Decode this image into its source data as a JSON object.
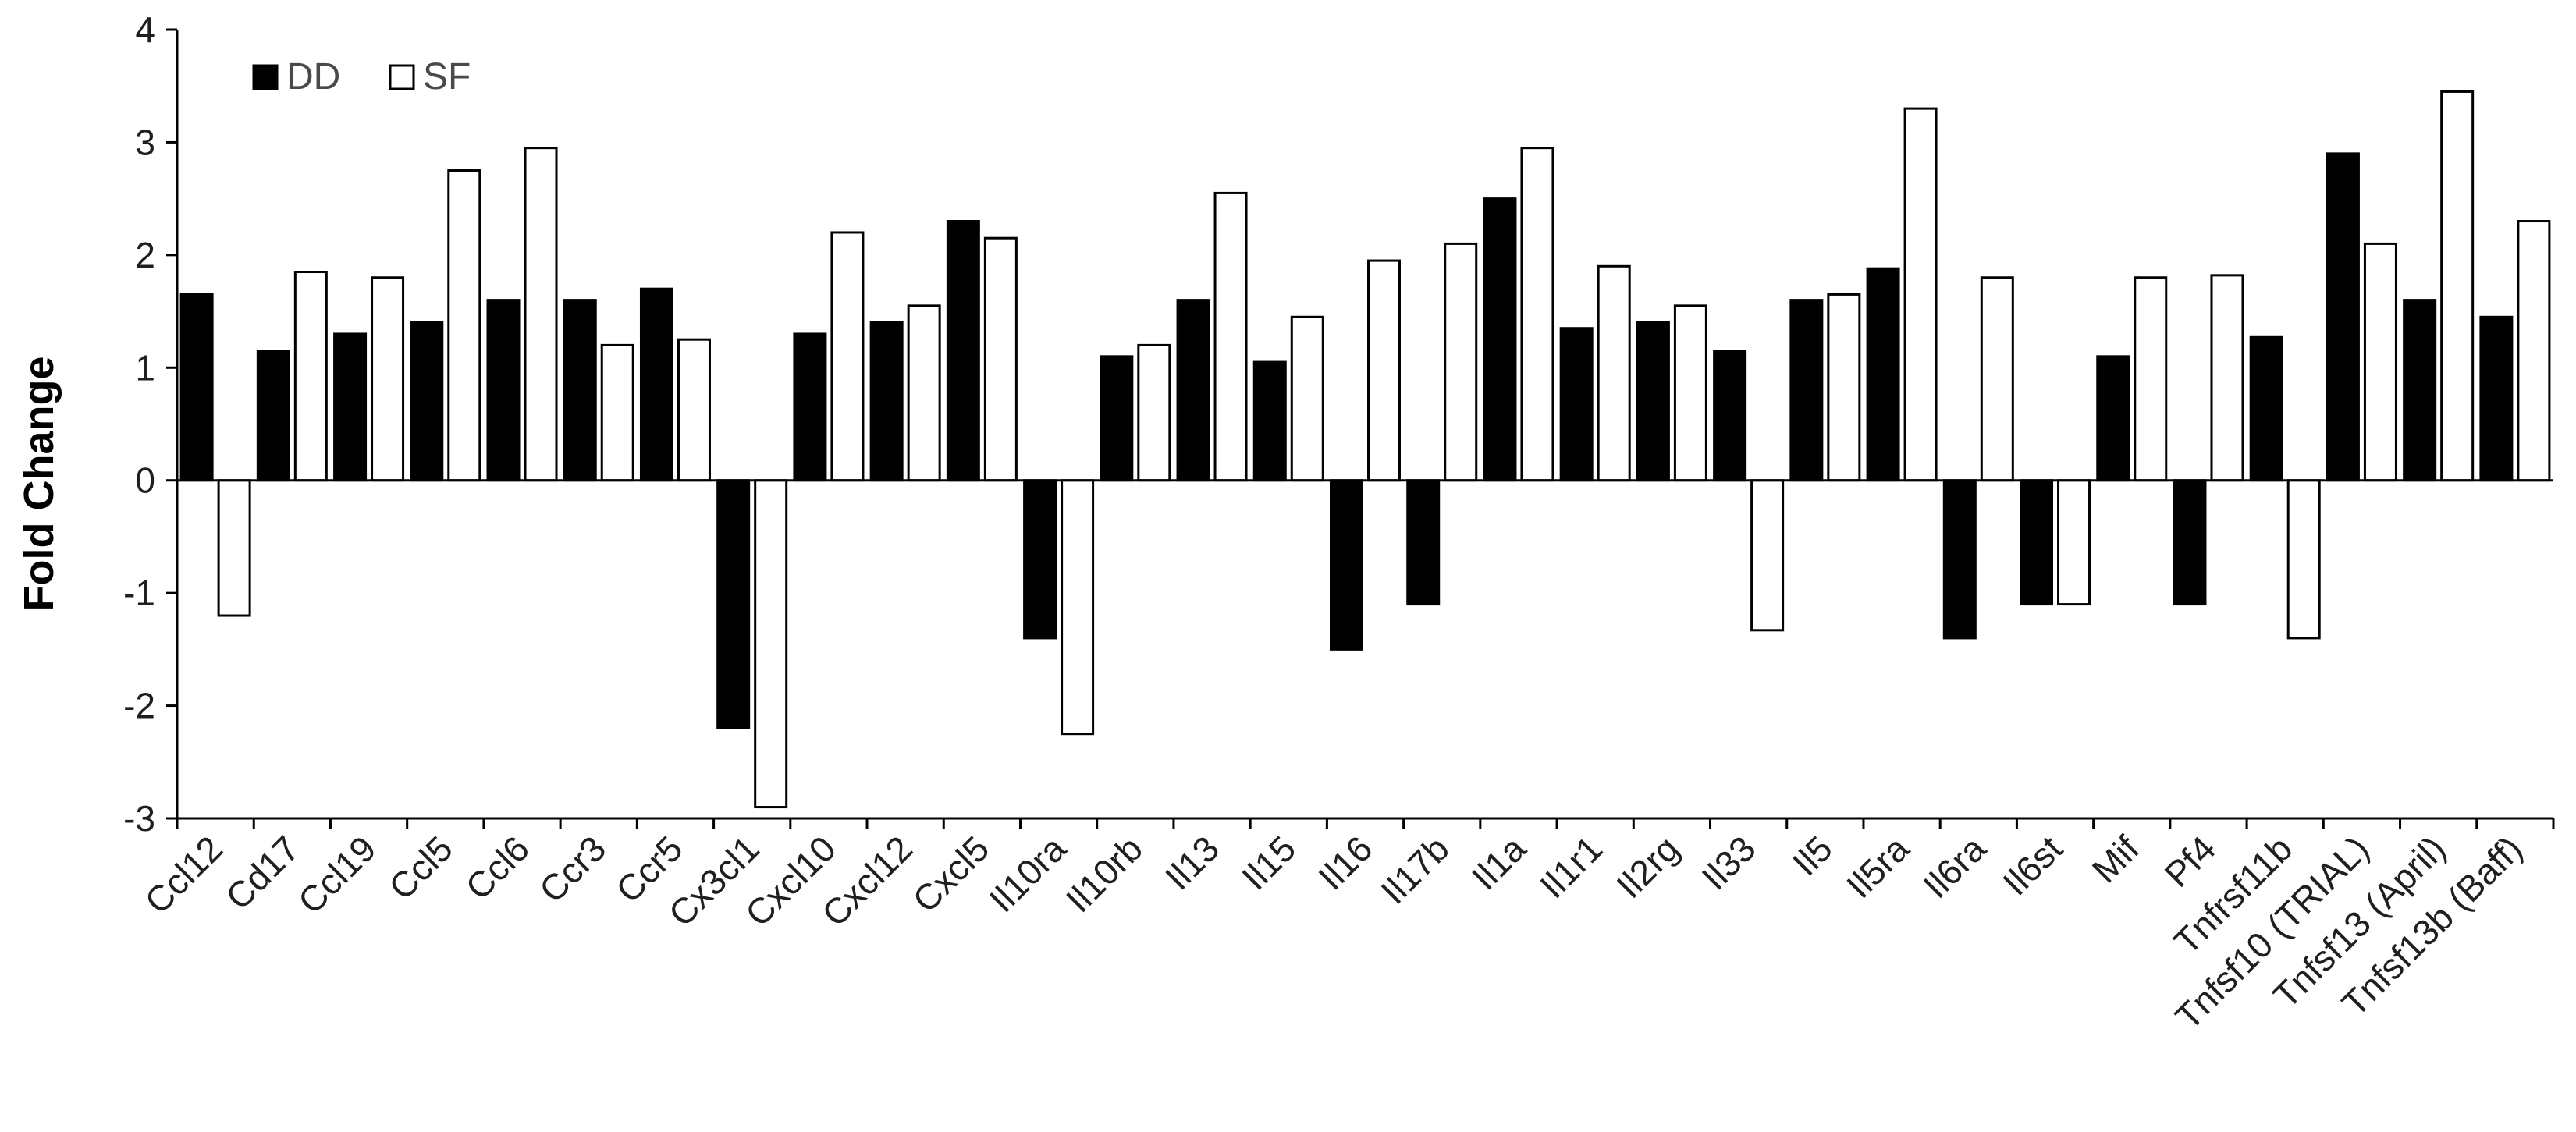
{
  "chart_data": {
    "type": "bar",
    "title": "",
    "xlabel": "",
    "ylabel": "Fold Change",
    "ylim": [
      -3,
      4
    ],
    "yticks": [
      4,
      3,
      2,
      1,
      0,
      -1,
      -2,
      -3
    ],
    "grid": false,
    "legend_position": "top-left",
    "categories": [
      "Ccl12",
      "Cd17",
      "Ccl19",
      "Ccl5",
      "Ccl6",
      "Ccr3",
      "Ccr5",
      "Cx3cl1",
      "Cxcl10",
      "Cxcl12",
      "Cxcl5",
      "Il10ra",
      "Il10rb",
      "Il13",
      "Il15",
      "Il16",
      "Il17b",
      "Il1a",
      "Il1r1",
      "Il2rg",
      "Il33",
      "Il5",
      "Il5ra",
      "Il6ra",
      "Il6st",
      "Mif",
      "Pf4",
      "Tnfrsf11b",
      "Tnfsf10 (TRIAL)",
      "Tnfsf13 (April)",
      "Tnfsf13b (Baff)"
    ],
    "series": [
      {
        "name": "DD",
        "color": "#000000",
        "values": [
          1.65,
          1.15,
          1.3,
          1.4,
          1.6,
          1.6,
          1.7,
          -2.2,
          1.3,
          1.4,
          2.3,
          -1.4,
          1.1,
          1.6,
          1.05,
          -1.5,
          -1.1,
          2.5,
          1.35,
          1.4,
          1.15,
          1.6,
          1.88,
          -1.4,
          -1.1,
          1.1,
          -1.1,
          1.27,
          2.9,
          1.6,
          1.45
        ]
      },
      {
        "name": "SF",
        "color": "#ffffff",
        "values": [
          -1.2,
          1.85,
          1.8,
          2.75,
          2.95,
          1.2,
          1.25,
          -2.9,
          2.2,
          1.55,
          2.15,
          -2.25,
          1.2,
          2.55,
          1.45,
          1.95,
          2.1,
          2.95,
          1.9,
          1.55,
          -1.33,
          1.65,
          3.3,
          1.8,
          -1.1,
          1.8,
          1.82,
          -1.4,
          2.1,
          3.45,
          2.3
        ]
      }
    ]
  }
}
